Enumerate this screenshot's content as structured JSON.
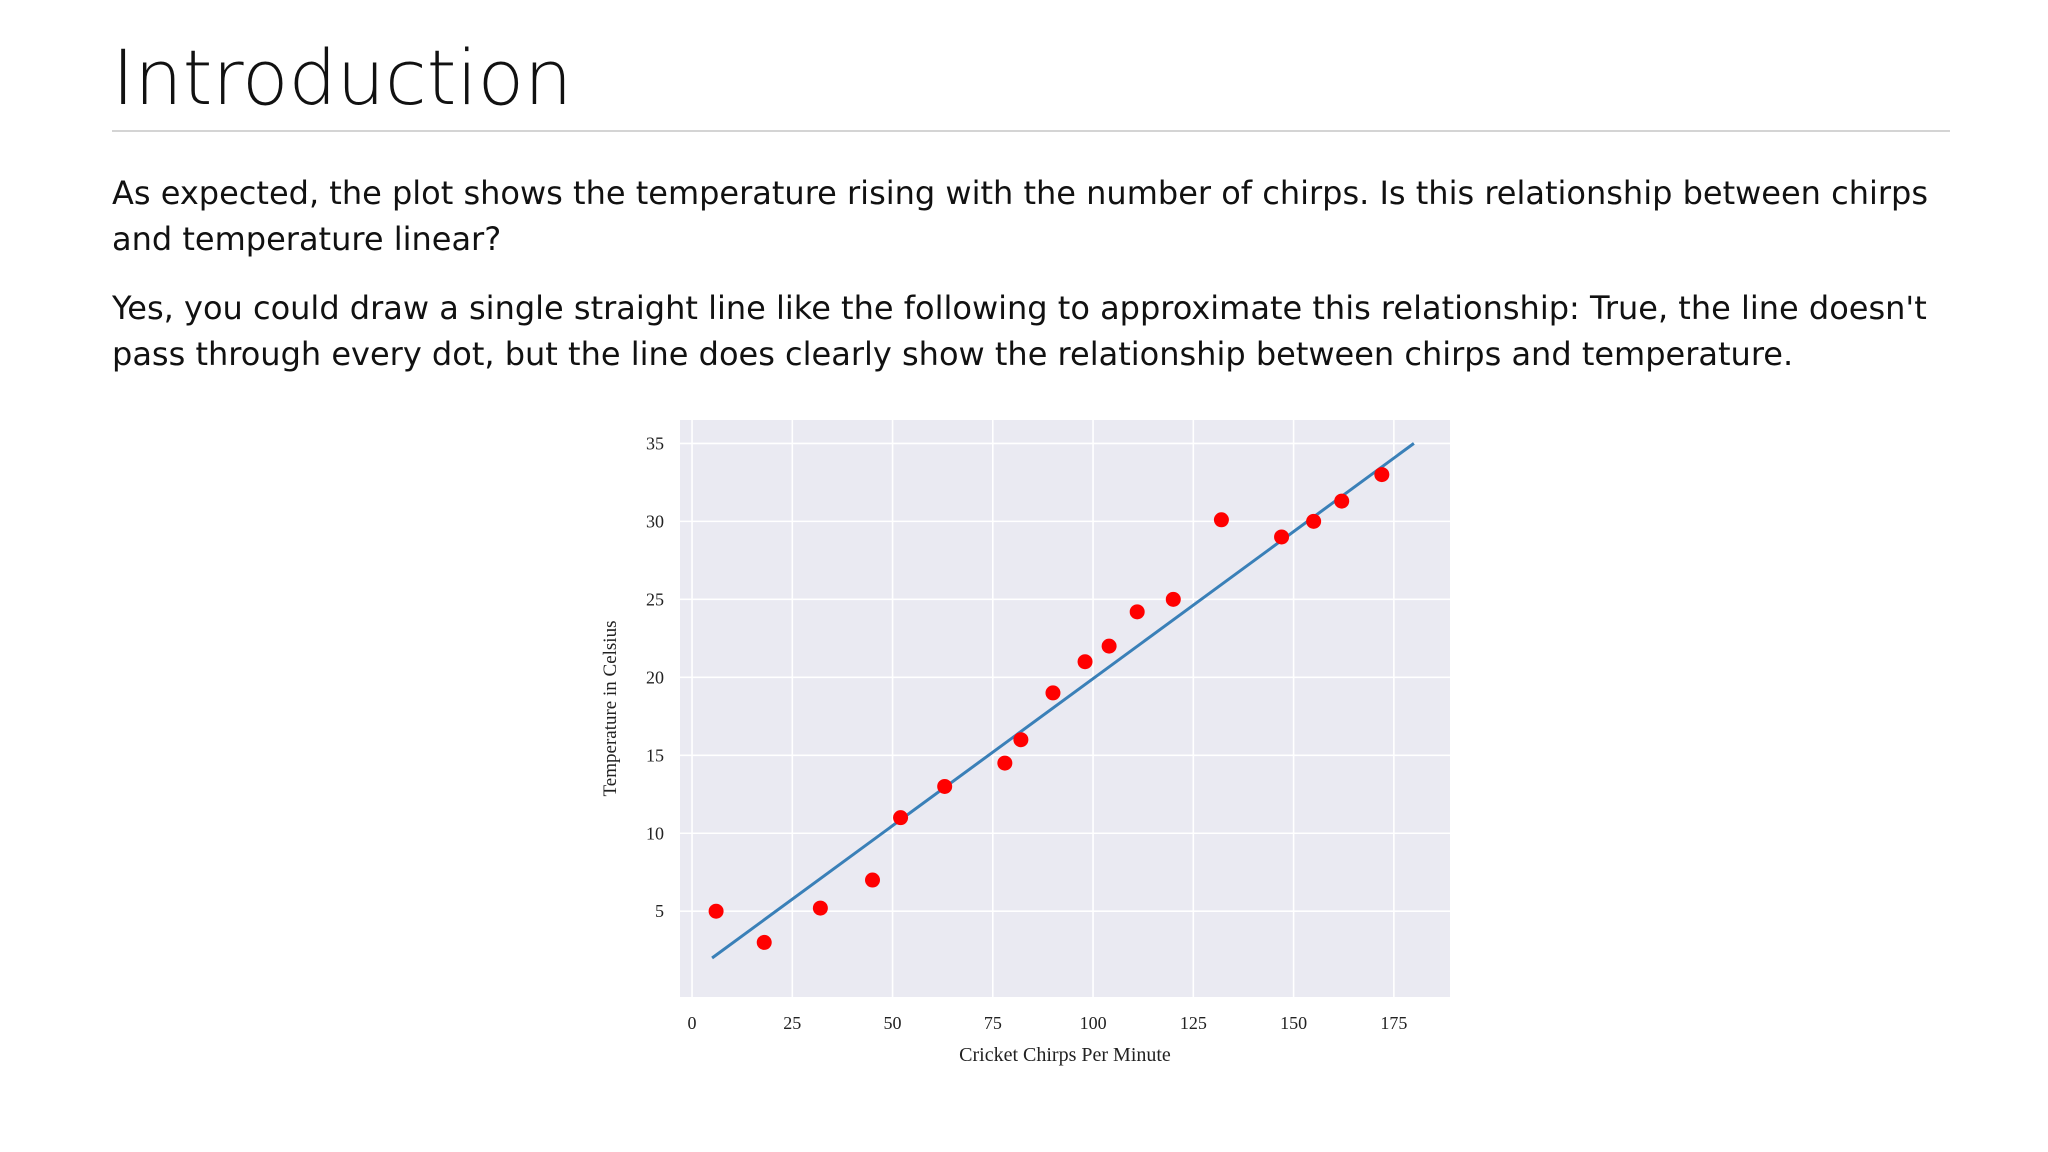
{
  "slide": {
    "title": "Introduction",
    "paragraphs": [
      "As expected, the plot shows the temperature rising with the number of chirps. Is this relationship between chirps and temperature linear?",
      "Yes, you could draw a single straight line like the following to approximate this relationship: True, the line doesn't pass through every dot, but the line does clearly show the relationship between chirps and temperature."
    ]
  },
  "colors": {
    "plot_background": "#eaeaf2",
    "grid": "#ffffff",
    "points": "#ff0000",
    "line": "#3a80b8"
  },
  "chart_data": {
    "type": "scatter",
    "title": "",
    "xlabel": "Cricket Chirps Per Minute",
    "ylabel": "Temperature in Celsius",
    "xlim": [
      -3,
      189
    ],
    "ylim": [
      -0.5,
      36.5
    ],
    "xticks": [
      0,
      25,
      50,
      75,
      100,
      125,
      150,
      175
    ],
    "yticks": [
      5,
      10,
      15,
      20,
      25,
      30,
      35
    ],
    "grid": true,
    "legend": "none",
    "series": [
      {
        "type": "scatter",
        "x": [
          6,
          18,
          32,
          45,
          52,
          63,
          78,
          82,
          90,
          98,
          104,
          111,
          120,
          132,
          147,
          155,
          162,
          172
        ],
        "y": [
          5,
          3,
          5.2,
          7,
          11,
          13,
          14.5,
          16,
          19,
          21,
          22,
          24.2,
          25,
          30.1,
          29,
          30,
          31.3,
          33
        ]
      },
      {
        "type": "line",
        "x": [
          5,
          180
        ],
        "y": [
          2,
          35
        ]
      }
    ]
  }
}
